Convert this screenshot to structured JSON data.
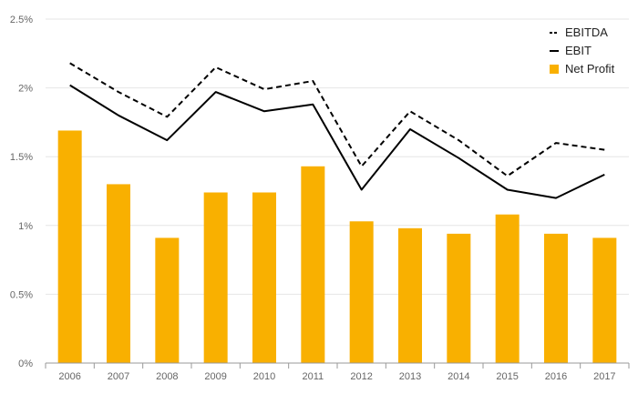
{
  "chart_data": {
    "type": "bar",
    "categories": [
      "2006",
      "2007",
      "2008",
      "2009",
      "2010",
      "2011",
      "2012",
      "2013",
      "2014",
      "2015",
      "2016",
      "2017"
    ],
    "series": [
      {
        "name": "EBITDA",
        "kind": "line",
        "style": "dashed",
        "color": "#000000",
        "values": [
          2.18,
          1.97,
          1.79,
          2.15,
          1.99,
          2.05,
          1.43,
          1.83,
          1.62,
          1.36,
          1.6,
          1.55
        ]
      },
      {
        "name": "EBIT",
        "kind": "line",
        "style": "solid",
        "color": "#000000",
        "values": [
          2.02,
          1.8,
          1.62,
          1.97,
          1.83,
          1.88,
          1.26,
          1.7,
          1.49,
          1.26,
          1.2,
          1.37
        ]
      },
      {
        "name": "Net Profit",
        "kind": "bar",
        "color": "#F9B000",
        "values": [
          1.69,
          1.3,
          0.91,
          1.24,
          1.24,
          1.43,
          1.03,
          0.98,
          0.94,
          1.08,
          0.94,
          0.91
        ]
      }
    ],
    "y_ticks": [
      0,
      0.5,
      1,
      1.5,
      2,
      2.5
    ],
    "y_tick_labels": [
      "0%",
      "0.5%",
      "1%",
      "1.5%",
      "2%",
      "2.5%"
    ],
    "ylim": [
      0,
      2.5
    ],
    "grid": true,
    "legend_position": "top-right"
  }
}
